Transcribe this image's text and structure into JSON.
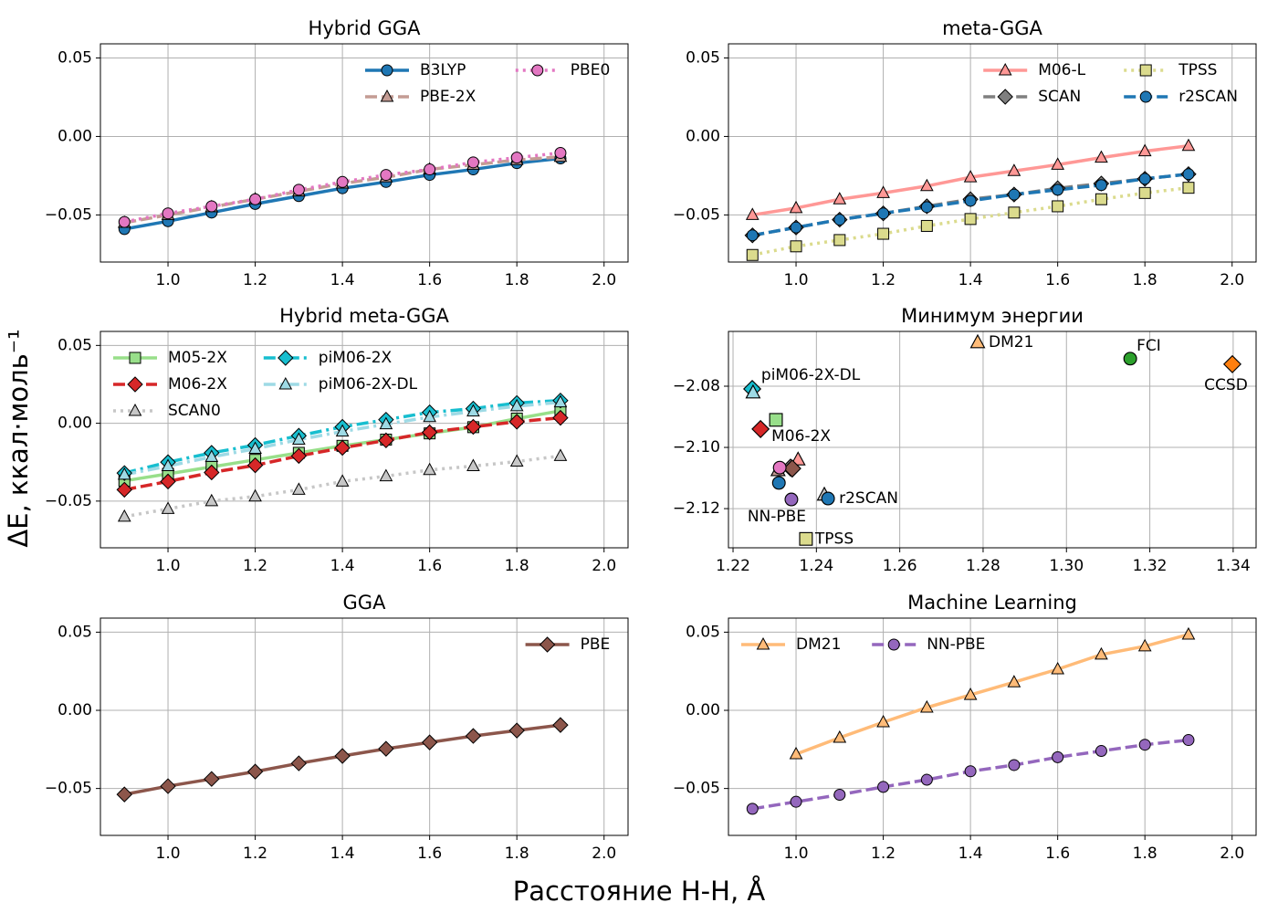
{
  "figure": {
    "xlabel": "Расстояние H-H, Å",
    "ylabel": "ΔE, ккал·моль⁻¹"
  },
  "chart_data": [
    {
      "type": "line",
      "title": "Hybrid GGA",
      "grid": true,
      "legend": {
        "loc": "upper right",
        "ncol": 2
      },
      "x": [
        0.9,
        1.0,
        1.1,
        1.2,
        1.3,
        1.4,
        1.5,
        1.6,
        1.7,
        1.8,
        1.9
      ],
      "xlim": [
        0.845,
        2.055
      ],
      "xticks": [
        {
          "value": 1,
          "label": "1.0"
        },
        {
          "value": 1.2,
          "label": "1.2"
        },
        {
          "value": 1.4,
          "label": "1.4"
        },
        {
          "value": 1.6,
          "label": "1.6"
        },
        {
          "value": 1.8,
          "label": "1.8"
        },
        {
          "value": 2,
          "label": "2.0"
        }
      ],
      "ylim": [
        -0.08,
        0.059
      ],
      "yticks": [
        {
          "value": -0.05,
          "label": "−0.05"
        },
        {
          "value": 0,
          "label": "0.00"
        },
        {
          "value": 0.05,
          "label": "0.05"
        }
      ],
      "series": [
        {
          "name": "B3LYP",
          "color": "#1f77b4",
          "marker": "circle",
          "linestyle": "solid",
          "values": [
            -0.059,
            -0.054,
            -0.0485,
            -0.043,
            -0.038,
            -0.033,
            -0.029,
            -0.0245,
            -0.021,
            -0.017,
            -0.014
          ]
        },
        {
          "name": "PBE-2X",
          "color": "#c49c94",
          "marker": "triangle",
          "linestyle": "dashed",
          "values": [
            -0.055,
            -0.05,
            -0.045,
            -0.04,
            -0.035,
            -0.03,
            -0.026,
            -0.021,
            -0.018,
            -0.015,
            -0.013
          ]
        },
        {
          "name": "PBE0",
          "color": "#e377c2",
          "marker": "circle",
          "linestyle": "dotted",
          "values": [
            -0.0545,
            -0.049,
            -0.0445,
            -0.04,
            -0.034,
            -0.029,
            -0.0245,
            -0.021,
            -0.0165,
            -0.0135,
            -0.0105
          ]
        }
      ]
    },
    {
      "type": "line",
      "title": "meta-GGA",
      "grid": true,
      "legend": {
        "loc": "upper right",
        "ncol": 2
      },
      "x": [
        0.9,
        1.0,
        1.1,
        1.2,
        1.3,
        1.4,
        1.5,
        1.6,
        1.7,
        1.8,
        1.9
      ],
      "xlim": [
        0.845,
        2.055
      ],
      "xticks": [
        {
          "value": 1,
          "label": "1.0"
        },
        {
          "value": 1.2,
          "label": "1.2"
        },
        {
          "value": 1.4,
          "label": "1.4"
        },
        {
          "value": 1.6,
          "label": "1.6"
        },
        {
          "value": 1.8,
          "label": "1.8"
        },
        {
          "value": 2,
          "label": "2.0"
        }
      ],
      "ylim": [
        -0.08,
        0.059
      ],
      "yticks": [
        {
          "value": -0.05,
          "label": "−0.05"
        },
        {
          "value": 0,
          "label": "0.00"
        },
        {
          "value": 0.05,
          "label": "0.05"
        }
      ],
      "series": [
        {
          "name": "M06-L",
          "color": "#ff9896",
          "marker": "triangle",
          "linestyle": "solid",
          "values": [
            -0.05,
            -0.0456,
            -0.04,
            -0.036,
            -0.0316,
            -0.026,
            -0.022,
            -0.018,
            -0.0135,
            -0.0094,
            -0.006
          ]
        },
        {
          "name": "SCAN",
          "color": "#7f7f7f",
          "marker": "diamond",
          "linestyle": "dashed",
          "values": [
            -0.063,
            -0.058,
            -0.053,
            -0.049,
            -0.0445,
            -0.04,
            -0.037,
            -0.033,
            -0.03,
            -0.027,
            -0.024
          ]
        },
        {
          "name": "TPSS",
          "color": "#dbdb8d",
          "marker": "square",
          "linestyle": "dotted",
          "values": [
            -0.0755,
            -0.07,
            -0.066,
            -0.062,
            -0.057,
            -0.0526,
            -0.0485,
            -0.0445,
            -0.04,
            -0.036,
            -0.0327
          ]
        },
        {
          "name": "r2SCAN",
          "color": "#1f77b4",
          "marker": "circle",
          "linestyle": "dashed",
          "values": [
            -0.063,
            -0.058,
            -0.053,
            -0.049,
            -0.045,
            -0.041,
            -0.037,
            -0.034,
            -0.031,
            -0.027,
            -0.024
          ]
        }
      ]
    },
    {
      "type": "line",
      "title": "Hybrid meta-GGA",
      "grid": true,
      "legend": {
        "loc": "upper left",
        "ncol": 2
      },
      "x": [
        0.9,
        1.0,
        1.1,
        1.2,
        1.3,
        1.4,
        1.5,
        1.6,
        1.7,
        1.8,
        1.9
      ],
      "xlim": [
        0.845,
        2.055
      ],
      "xticks": [
        {
          "value": 1,
          "label": "1.0"
        },
        {
          "value": 1.2,
          "label": "1.2"
        },
        {
          "value": 1.4,
          "label": "1.4"
        },
        {
          "value": 1.6,
          "label": "1.6"
        },
        {
          "value": 1.8,
          "label": "1.8"
        },
        {
          "value": 2,
          "label": "2.0"
        }
      ],
      "ylim": [
        -0.08,
        0.059
      ],
      "yticks": [
        {
          "value": -0.05,
          "label": "−0.05"
        },
        {
          "value": 0,
          "label": "0.00"
        },
        {
          "value": 0.05,
          "label": "0.05"
        }
      ],
      "series": [
        {
          "name": "M05-2X",
          "color": "#98df8a",
          "marker": "square",
          "linestyle": "solid",
          "values": [
            -0.037,
            -0.0325,
            -0.028,
            -0.0235,
            -0.019,
            -0.0145,
            -0.0105,
            -0.0065,
            -0.0025,
            0.003,
            0.008
          ]
        },
        {
          "name": "M06-2X",
          "color": "#d62728",
          "marker": "diamond",
          "linestyle": "dashed",
          "values": [
            -0.0427,
            -0.0374,
            -0.0316,
            -0.027,
            -0.021,
            -0.0158,
            -0.011,
            -0.0058,
            -0.0023,
            0.001,
            0.0035
          ]
        },
        {
          "name": "SCAN0",
          "color": "#c7c7c7",
          "marker": "triangle",
          "linestyle": "dotted",
          "values": [
            -0.06,
            -0.055,
            -0.05,
            -0.047,
            -0.0427,
            -0.0374,
            -0.034,
            -0.03,
            -0.0275,
            -0.0246,
            -0.021
          ]
        },
        {
          "name": "piM06-2X",
          "color": "#17becf",
          "marker": "diamond",
          "linestyle": "dashdot",
          "values": [
            -0.032,
            -0.025,
            -0.019,
            -0.014,
            -0.008,
            -0.0023,
            0.0023,
            0.007,
            0.0094,
            0.013,
            0.0146
          ]
        },
        {
          "name": "piM06-2X-DL",
          "color": "#9edae5",
          "marker": "triangle",
          "linestyle": "dashdot",
          "values": [
            -0.033,
            -0.0275,
            -0.0216,
            -0.0164,
            -0.0105,
            -0.0053,
            -0.0006,
            0.004,
            0.0076,
            0.011,
            0.0135
          ]
        }
      ]
    },
    {
      "type": "scatter",
      "title": "Минимум энергии",
      "grid": true,
      "xlim": [
        1.2189,
        1.3455
      ],
      "xticks": [
        1.22,
        1.24,
        1.26,
        1.28,
        {
          "value": 1.3,
          "label": "1.30"
        },
        1.32,
        1.34
      ],
      "ylim": [
        -2.1328,
        -2.0621
      ],
      "yticks": [
        {
          "value": -2.12,
          "label": "−2.12"
        },
        {
          "value": -2.1,
          "label": "−2.10"
        },
        {
          "value": -2.08,
          "label": "−2.08"
        }
      ],
      "points": [
        {
          "x": 1.2787,
          "y": -2.0657,
          "color": "#ffbb78",
          "marker": "triangle",
          "label": "DM21"
        },
        {
          "x": 1.3153,
          "y": -2.071,
          "color": "#2ca02c",
          "marker": "circle",
          "label": "FCI"
        },
        {
          "x": 1.3398,
          "y": -2.0728,
          "color": "#ff7f0e",
          "marker": "diamond",
          "label": "CCSD"
        },
        {
          "x": 1.2246,
          "y": -2.0809,
          "color": "#17becf",
          "marker": "diamond"
        },
        {
          "x": 1.2248,
          "y": -2.0821,
          "color": "#9edae5",
          "marker": "triangle",
          "label": "piM06-2X-DL"
        },
        {
          "x": 1.2303,
          "y": -2.091,
          "color": "#98df8a",
          "marker": "square"
        },
        {
          "x": 1.2266,
          "y": -2.094,
          "color": "#d62728",
          "marker": "diamond",
          "label": "M06-2X"
        },
        {
          "x": 1.2356,
          "y": -2.104,
          "color": "#ff9896",
          "marker": "triangle"
        },
        {
          "x": 1.2338,
          "y": -2.1066,
          "color": "#7f7f7f",
          "marker": "diamond"
        },
        {
          "x": 1.2342,
          "y": -2.1069,
          "color": "#8c564b",
          "marker": "diamond"
        },
        {
          "x": 1.2308,
          "y": -2.1075,
          "color": "#c49c94",
          "marker": "triangle"
        },
        {
          "x": 1.2312,
          "y": -2.1066,
          "color": "#e377c2",
          "marker": "circle"
        },
        {
          "x": 1.231,
          "y": -2.1116,
          "color": "#1f77b4",
          "marker": "circle"
        },
        {
          "x": 1.234,
          "y": -2.117,
          "color": "#9467bd",
          "marker": "circle",
          "label": "NN-PBE"
        },
        {
          "x": 1.2419,
          "y": -2.1155,
          "color": "#c7c7c7",
          "marker": "triangle"
        },
        {
          "x": 1.2428,
          "y": -2.1167,
          "color": "#1f77b4",
          "marker": "circle",
          "label": "r2SCAN"
        },
        {
          "x": 1.2375,
          "y": -2.1299,
          "color": "#dbdb8d",
          "marker": "square",
          "label": "TPSS"
        }
      ]
    },
    {
      "type": "line",
      "title": "GGA",
      "grid": true,
      "legend": {
        "loc": "upper right",
        "ncol": 1
      },
      "x": [
        0.9,
        1.0,
        1.1,
        1.2,
        1.3,
        1.4,
        1.5,
        1.6,
        1.7,
        1.8,
        1.9
      ],
      "xlim": [
        0.845,
        2.055
      ],
      "xticks": [
        {
          "value": 1,
          "label": "1.0"
        },
        {
          "value": 1.2,
          "label": "1.2"
        },
        {
          "value": 1.4,
          "label": "1.4"
        },
        {
          "value": 1.6,
          "label": "1.6"
        },
        {
          "value": 1.8,
          "label": "1.8"
        },
        {
          "value": 2,
          "label": "2.0"
        }
      ],
      "ylim": [
        -0.08,
        0.059
      ],
      "yticks": [
        {
          "value": -0.05,
          "label": "−0.05"
        },
        {
          "value": 0,
          "label": "0.00"
        },
        {
          "value": 0.05,
          "label": "0.05"
        }
      ],
      "series": [
        {
          "name": "PBE",
          "color": "#8c564b",
          "marker": "diamond",
          "linestyle": "solid",
          "values": [
            -0.0538,
            -0.0485,
            -0.0439,
            -0.0392,
            -0.0339,
            -0.0292,
            -0.0246,
            -0.0205,
            -0.0164,
            -0.0129,
            -0.0094
          ]
        }
      ]
    },
    {
      "type": "line",
      "title": "Machine Learning",
      "grid": true,
      "legend": {
        "loc": "upper left",
        "ncol": 2
      },
      "x": [
        0.9,
        1.0,
        1.1,
        1.2,
        1.3,
        1.4,
        1.5,
        1.6,
        1.7,
        1.8,
        1.9
      ],
      "xlim": [
        0.845,
        2.055
      ],
      "xticks": [
        {
          "value": 1,
          "label": "1.0"
        },
        {
          "value": 1.2,
          "label": "1.2"
        },
        {
          "value": 1.4,
          "label": "1.4"
        },
        {
          "value": 1.6,
          "label": "1.6"
        },
        {
          "value": 1.8,
          "label": "1.8"
        },
        {
          "value": 2,
          "label": "2.0"
        }
      ],
      "ylim": [
        -0.08,
        0.059
      ],
      "yticks": [
        {
          "value": -0.05,
          "label": "−0.05"
        },
        {
          "value": 0,
          "label": "0.00"
        },
        {
          "value": 0.05,
          "label": "0.05"
        }
      ],
      "series": [
        {
          "name": "DM21",
          "color": "#ffbb78",
          "marker": "triangle",
          "linestyle": "solid",
          "values": [
            null,
            -0.028,
            -0.0175,
            -0.0076,
            0.0018,
            0.0099,
            0.018,
            0.0263,
            0.0357,
            0.041,
            0.0485
          ]
        },
        {
          "name": "NN-PBE",
          "color": "#9467bd",
          "marker": "circle",
          "linestyle": "dashed",
          "values": [
            -0.063,
            -0.0585,
            -0.054,
            -0.049,
            -0.0444,
            -0.039,
            -0.035,
            -0.03,
            -0.026,
            -0.022,
            -0.019
          ]
        }
      ]
    }
  ]
}
